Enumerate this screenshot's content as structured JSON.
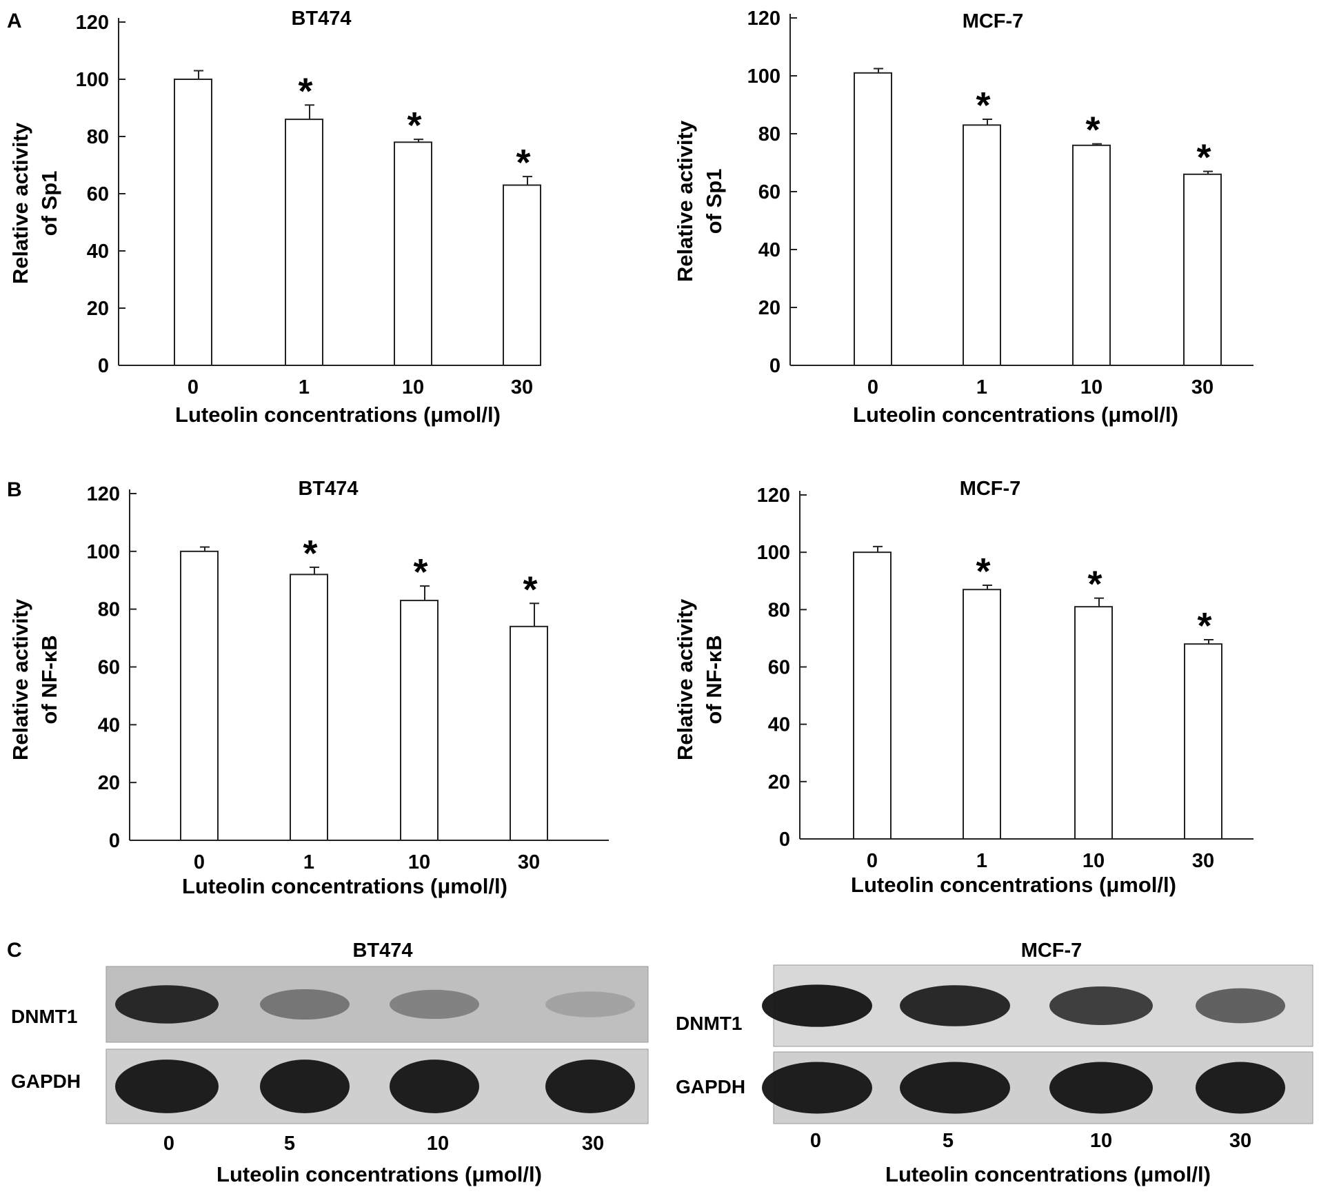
{
  "figure": {
    "panels": {
      "A": "A",
      "B": "B",
      "C": "C"
    }
  },
  "chart_data": [
    {
      "type": "bar",
      "panel": "A",
      "title": "BT474",
      "xlabel": "Luteolin concentrations (μmol/l)",
      "ylabel_line1": "Relative activity",
      "ylabel_line2": "of Sp1",
      "categories": [
        "0",
        "1",
        "10",
        "30"
      ],
      "values": [
        100,
        86,
        78,
        63
      ],
      "errors": [
        3,
        5,
        1,
        3
      ],
      "significance": [
        "",
        "*",
        "*",
        "*"
      ],
      "ylim": [
        0,
        120
      ],
      "yticks": [
        0,
        20,
        40,
        60,
        80,
        100,
        120
      ],
      "bar_color": "#ffffff"
    },
    {
      "type": "bar",
      "panel": "A",
      "title": "MCF-7",
      "xlabel": "Luteolin concentrations (μmol/l)",
      "ylabel_line1": "Relative activity",
      "ylabel_line2": "of Sp1",
      "categories": [
        "0",
        "1",
        "10",
        "30"
      ],
      "values": [
        101,
        83,
        76,
        66
      ],
      "errors": [
        1.5,
        2,
        0.5,
        1
      ],
      "significance": [
        "",
        "*",
        "*",
        "*"
      ],
      "ylim": [
        0,
        120
      ],
      "yticks": [
        0,
        20,
        40,
        60,
        80,
        100,
        120
      ],
      "bar_color": "#ffffff"
    },
    {
      "type": "bar",
      "panel": "B",
      "title": "BT474",
      "xlabel": "Luteolin concentrations (μmol/l)",
      "ylabel_line1": "Relative activity",
      "ylabel_line2": "of NF-κB",
      "categories": [
        "0",
        "1",
        "10",
        "30"
      ],
      "values": [
        100,
        92,
        83,
        74
      ],
      "errors": [
        1.5,
        2.5,
        5,
        8
      ],
      "significance": [
        "",
        "*",
        "*",
        "*"
      ],
      "ylim": [
        0,
        120
      ],
      "yticks": [
        0,
        20,
        40,
        60,
        80,
        100,
        120
      ],
      "bar_color": "#ffffff"
    },
    {
      "type": "bar",
      "panel": "B",
      "title": "MCF-7",
      "xlabel": "Luteolin concentrations (μmol/l)",
      "ylabel_line1": "Relative activity",
      "ylabel_line2": "of NF-κB",
      "categories": [
        "0",
        "1",
        "10",
        "30"
      ],
      "values": [
        100,
        87,
        81,
        68
      ],
      "errors": [
        2,
        1.5,
        3,
        1.5
      ],
      "significance": [
        "",
        "*",
        "*",
        "*"
      ],
      "ylim": [
        0,
        120
      ],
      "yticks": [
        0,
        20,
        40,
        60,
        80,
        100,
        120
      ],
      "bar_color": "#ffffff"
    }
  ],
  "blots": [
    {
      "panel": "C",
      "title": "BT474",
      "xlabel": "Luteolin concentrations (μmol/l)",
      "lanes": [
        "0",
        "5",
        "10",
        "30"
      ],
      "rows": [
        {
          "label": "DNMT1",
          "band_intensity": [
            0.95,
            0.6,
            0.55,
            0.4
          ]
        },
        {
          "label": "GAPDH",
          "band_intensity": [
            1.0,
            1.0,
            1.0,
            1.0
          ]
        }
      ]
    },
    {
      "panel": "C",
      "title": "MCF-7",
      "xlabel": "Luteolin concentrations (μmol/l)",
      "lanes": [
        "0",
        "5",
        "10",
        "30"
      ],
      "rows": [
        {
          "label": "DNMT1",
          "band_intensity": [
            1.0,
            0.95,
            0.85,
            0.7
          ]
        },
        {
          "label": "GAPDH",
          "band_intensity": [
            1.0,
            1.0,
            1.0,
            1.0
          ]
        }
      ]
    }
  ]
}
